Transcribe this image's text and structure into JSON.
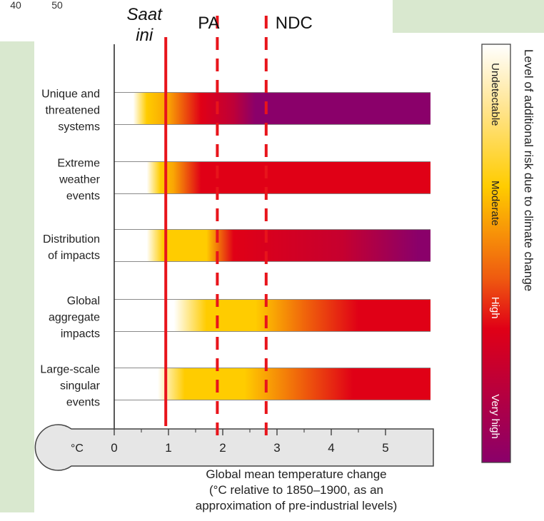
{
  "palette": {
    "panel_green": "#d9e8cf",
    "undetectable": "#ffffff",
    "moderate": "#ffcc00",
    "high": "#e00016",
    "very_high": "#8a006a",
    "marker_red": "#e8141b"
  },
  "partial_top_left_ticks": [
    "40",
    "50"
  ],
  "chart_data": {
    "type": "heatmap",
    "x_unit_symbol": "°C",
    "xlim": [
      0,
      5.8
    ],
    "x_ticks": [
      "0",
      "1",
      "2",
      "3",
      "4",
      "5"
    ],
    "x_tick_values": [
      0,
      1,
      2,
      3,
      4,
      5
    ],
    "xlabel_lines": [
      "Global mean temperature change",
      "(°C relative to 1850–1900, as an",
      "approximation of pre-industrial levels)"
    ],
    "rows": [
      {
        "label_lines": [
          "Unique and",
          "threatened",
          "systems"
        ],
        "gradient_stops": [
          {
            "x": 0.35,
            "level": 0
          },
          {
            "x": 0.6,
            "level": 1
          },
          {
            "x": 1.0,
            "level": 1.2
          },
          {
            "x": 1.6,
            "level": 2
          },
          {
            "x": 2.2,
            "level": 2.4
          },
          {
            "x": 2.6,
            "level": 3
          },
          {
            "x": 5.6,
            "level": 3
          }
        ]
      },
      {
        "label_lines": [
          "Extreme",
          "weather",
          "events"
        ],
        "gradient_stops": [
          {
            "x": 0.6,
            "level": 0
          },
          {
            "x": 0.85,
            "level": 1
          },
          {
            "x": 1.1,
            "level": 1.2
          },
          {
            "x": 1.6,
            "level": 2
          },
          {
            "x": 5.6,
            "level": 2
          }
        ]
      },
      {
        "label_lines": [
          "Distribution",
          "of impacts"
        ],
        "gradient_stops": [
          {
            "x": 0.6,
            "level": 0
          },
          {
            "x": 0.9,
            "level": 1
          },
          {
            "x": 1.7,
            "level": 1
          },
          {
            "x": 2.2,
            "level": 2
          },
          {
            "x": 4.2,
            "level": 2.3
          },
          {
            "x": 5.6,
            "level": 3
          }
        ]
      },
      {
        "label_lines": [
          "Global",
          "aggregate",
          "impacts"
        ],
        "gradient_stops": [
          {
            "x": 1.1,
            "level": 0
          },
          {
            "x": 1.7,
            "level": 1
          },
          {
            "x": 2.6,
            "level": 1
          },
          {
            "x": 3.5,
            "level": 1.5
          },
          {
            "x": 4.5,
            "level": 2
          },
          {
            "x": 5.6,
            "level": 2
          }
        ]
      },
      {
        "label_lines": [
          "Large-scale",
          "singular",
          "events"
        ],
        "gradient_stops": [
          {
            "x": 0.8,
            "level": 0
          },
          {
            "x": 1.3,
            "level": 1
          },
          {
            "x": 2.4,
            "level": 1
          },
          {
            "x": 3.4,
            "level": 1.5
          },
          {
            "x": 4.4,
            "level": 2
          },
          {
            "x": 5.6,
            "level": 2
          }
        ]
      }
    ],
    "markers": [
      {
        "label_lines": [
          "Saat",
          "ini"
        ],
        "x": 0.95,
        "style": "solid"
      },
      {
        "label_lines": [
          "PA"
        ],
        "x": 1.9,
        "style": "dashed"
      },
      {
        "label_lines": [
          "NDC"
        ],
        "x": 2.8,
        "style": "dashed"
      }
    ],
    "legend": {
      "title": "Level of additional risk due to climate change",
      "levels": [
        "Undetectable",
        "Moderate",
        "High",
        "Very high"
      ],
      "placement": "right"
    }
  }
}
